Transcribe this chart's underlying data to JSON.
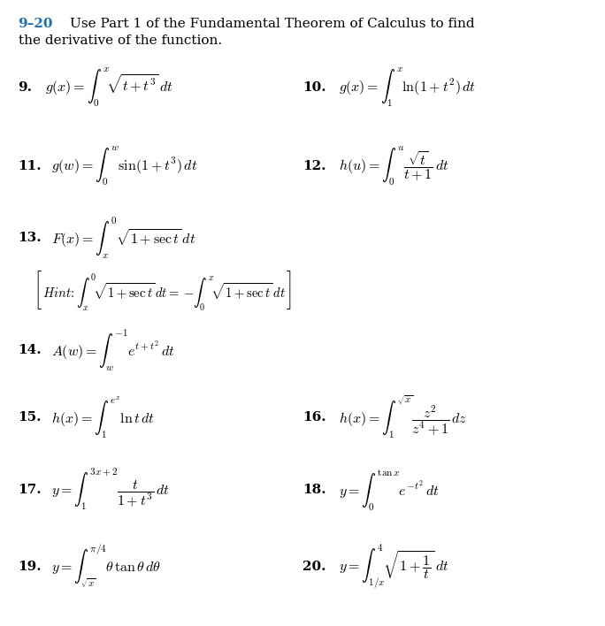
{
  "background_color": "#ffffff",
  "text_color": "#000000",
  "title_color": "#1a6fad"
}
